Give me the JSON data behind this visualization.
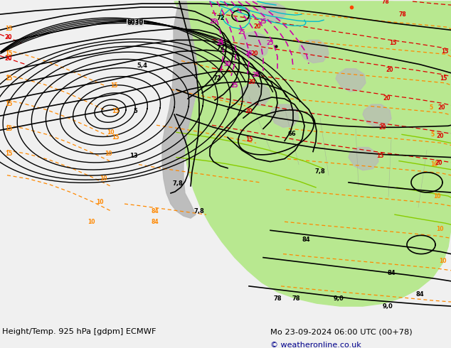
{
  "title_left": "Height/Temp. 925 hPa [gdpm] ECMWF",
  "title_right": "Mo 23-09-2024 06:00 UTC (00+78)",
  "copyright": "© weatheronline.co.uk",
  "fig_width": 6.34,
  "fig_height": 4.9,
  "dpi": 100,
  "bg_color": "#f0f0f0",
  "map_bg_color": "#e0e0e0",
  "green_color": "#b8e890",
  "gray_terrain": "#b0b0b0",
  "black_color": "#000000",
  "orange_color": "#ff8800",
  "red_color": "#dd0000",
  "magenta_color": "#cc00aa",
  "cyan_color": "#00bbcc",
  "lime_color": "#88cc00",
  "bottom_bar_color": "#f0f0f0",
  "copyright_color": "#00008b"
}
